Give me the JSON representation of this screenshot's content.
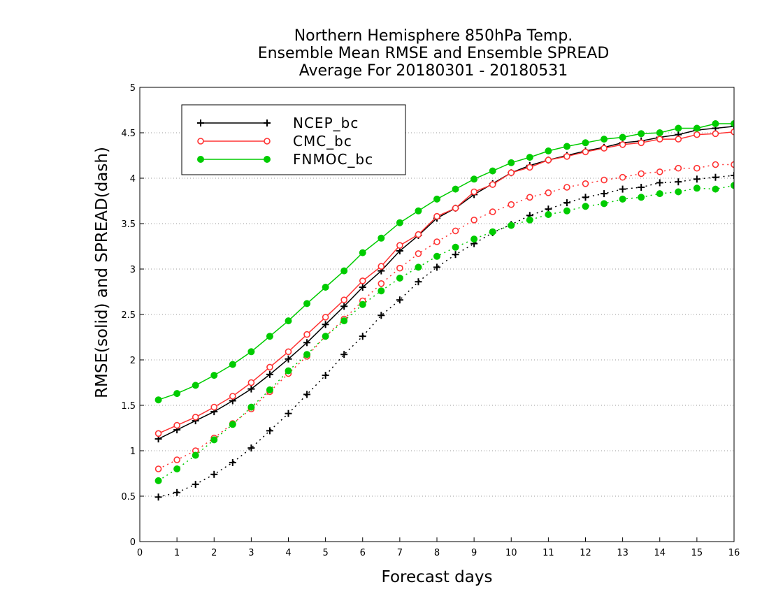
{
  "chart_data": {
    "type": "line",
    "title": [
      "Northern Hemisphere 850hPa Temp.",
      "Ensemble Mean RMSE and Ensemble SPREAD",
      "Average For 20180301 - 20180531"
    ],
    "xlabel": "Forecast days",
    "ylabel": "RMSE(solid) and SPREAD(dash)",
    "xlim": [
      0,
      16
    ],
    "ylim": [
      0,
      5
    ],
    "xticks": [
      "0",
      "1",
      "2",
      "3",
      "4",
      "5",
      "6",
      "7",
      "8",
      "9",
      "10",
      "11",
      "12",
      "13",
      "14",
      "15",
      "16"
    ],
    "yticks": [
      "0",
      "0.5",
      "1",
      "1.5",
      "2",
      "2.5",
      "3",
      "3.5",
      "4",
      "4.5",
      "5"
    ],
    "grid": "horizontal dotted",
    "legend_position": "top-left",
    "x": [
      0.5,
      1,
      1.5,
      2,
      2.5,
      3,
      3.5,
      4,
      4.5,
      5,
      5.5,
      6,
      6.5,
      7,
      7.5,
      8,
      8.5,
      9,
      9.5,
      10,
      10.5,
      11,
      11.5,
      12,
      12.5,
      13,
      13.5,
      14,
      14.5,
      15,
      15.5,
      16
    ],
    "series": [
      {
        "name": "NCEP_bc",
        "color": "#000000",
        "marker": "plus",
        "rmse": [
          1.13,
          1.23,
          1.33,
          1.43,
          1.55,
          1.68,
          1.84,
          2.01,
          2.19,
          2.39,
          2.59,
          2.8,
          2.98,
          3.2,
          3.37,
          3.56,
          3.67,
          3.82,
          3.94,
          4.06,
          4.14,
          4.2,
          4.25,
          4.3,
          4.34,
          4.39,
          4.41,
          4.45,
          4.48,
          4.53,
          4.55,
          4.57
        ],
        "spread": [
          0.49,
          0.54,
          0.63,
          0.74,
          0.87,
          1.03,
          1.22,
          1.41,
          1.62,
          1.83,
          2.06,
          2.26,
          2.49,
          2.66,
          2.86,
          3.02,
          3.16,
          3.28,
          3.4,
          3.49,
          3.59,
          3.66,
          3.73,
          3.79,
          3.83,
          3.88,
          3.9,
          3.95,
          3.96,
          3.99,
          4.01,
          4.03
        ]
      },
      {
        "name": "CMC_bc",
        "color": "#ff3333",
        "marker": "open-circle",
        "rmse": [
          1.19,
          1.28,
          1.37,
          1.48,
          1.6,
          1.75,
          1.92,
          2.09,
          2.28,
          2.47,
          2.66,
          2.87,
          3.03,
          3.26,
          3.38,
          3.58,
          3.67,
          3.85,
          3.93,
          4.06,
          4.12,
          4.2,
          4.24,
          4.29,
          4.33,
          4.37,
          4.39,
          4.43,
          4.43,
          4.48,
          4.49,
          4.51
        ],
        "spread": [
          0.8,
          0.9,
          1.0,
          1.14,
          1.3,
          1.46,
          1.65,
          1.85,
          2.04,
          2.26,
          2.45,
          2.65,
          2.84,
          3.01,
          3.17,
          3.3,
          3.42,
          3.54,
          3.63,
          3.71,
          3.79,
          3.84,
          3.9,
          3.94,
          3.98,
          4.01,
          4.05,
          4.07,
          4.11,
          4.11,
          4.15,
          4.15
        ]
      },
      {
        "name": "FNMOC_bc",
        "color": "#00cc00",
        "marker": "filled-circle",
        "rmse": [
          1.56,
          1.63,
          1.72,
          1.83,
          1.95,
          2.09,
          2.26,
          2.43,
          2.62,
          2.8,
          2.98,
          3.18,
          3.34,
          3.51,
          3.64,
          3.77,
          3.88,
          3.99,
          4.08,
          4.17,
          4.23,
          4.3,
          4.35,
          4.39,
          4.43,
          4.45,
          4.49,
          4.5,
          4.55,
          4.55,
          4.6,
          4.6
        ],
        "spread": [
          0.67,
          0.8,
          0.95,
          1.12,
          1.29,
          1.48,
          1.67,
          1.88,
          2.06,
          2.26,
          2.43,
          2.61,
          2.76,
          2.9,
          3.02,
          3.14,
          3.24,
          3.33,
          3.41,
          3.48,
          3.54,
          3.6,
          3.64,
          3.69,
          3.72,
          3.77,
          3.79,
          3.83,
          3.85,
          3.89,
          3.88,
          3.92
        ]
      }
    ]
  }
}
